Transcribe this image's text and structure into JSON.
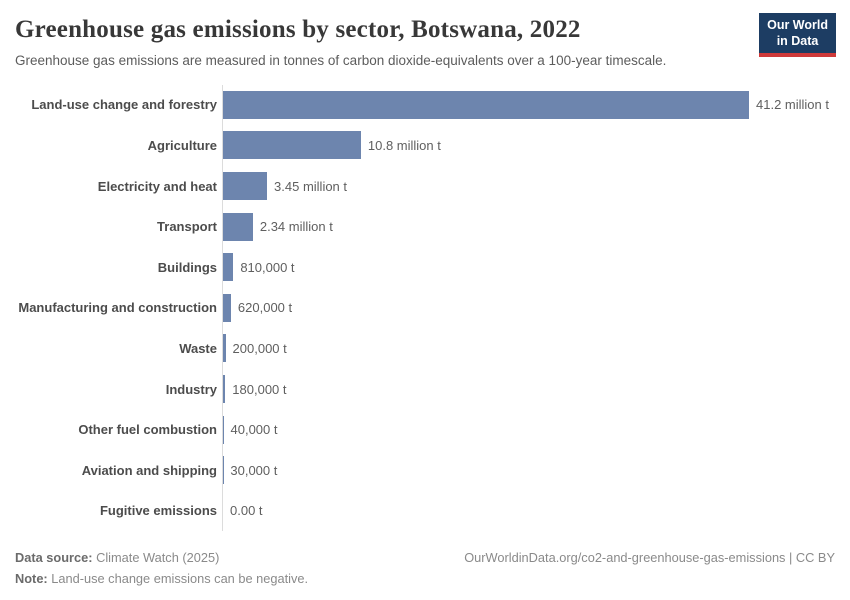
{
  "header": {
    "title": "Greenhouse gas emissions by sector, Botswana, 2022",
    "subtitle": "Greenhouse gas emissions are measured in tonnes of carbon dioxide-equivalents over a 100-year timescale.",
    "logo_line1": "Our World",
    "logo_line2": "in Data",
    "logo_colors": {
      "background": "#1d3d63",
      "accent": "#cf3a3a"
    }
  },
  "chart_data": {
    "type": "bar",
    "orientation": "horizontal",
    "title": "Greenhouse gas emissions by sector, Botswana, 2022",
    "unit": "tonnes of carbon dioxide-equivalents",
    "xlabel": "",
    "ylabel": "",
    "xlim": [
      0,
      41.2
    ],
    "grid": false,
    "legend": false,
    "bar_color": "#6d85ae",
    "axis_line_color": "#dcdcdc",
    "categories": [
      "Land-use change and forestry",
      "Agriculture",
      "Electricity and heat",
      "Transport",
      "Buildings",
      "Manufacturing and construction",
      "Waste",
      "Industry",
      "Other fuel combustion",
      "Aviation and shipping",
      "Fugitive emissions"
    ],
    "values": [
      41.2,
      10.8,
      3.45,
      2.34,
      0.81,
      0.62,
      0.2,
      0.18,
      0.04,
      0.03,
      0.0
    ],
    "values_unit": "million tonnes",
    "value_labels": [
      "41.2 million t",
      "10.8 million t",
      "3.45 million t",
      "2.34 million t",
      "810,000 t",
      "620,000 t",
      "200,000 t",
      "180,000 t",
      "40,000 t",
      "30,000 t",
      "0.00 t"
    ]
  },
  "footer": {
    "data_source_label": "Data source:",
    "data_source_value": "Climate Watch (2025)",
    "note_label": "Note:",
    "note_value": "Land-use change emissions can be negative.",
    "attribution": "OurWorldinData.org/co2-and-greenhouse-gas-emissions | CC BY"
  }
}
